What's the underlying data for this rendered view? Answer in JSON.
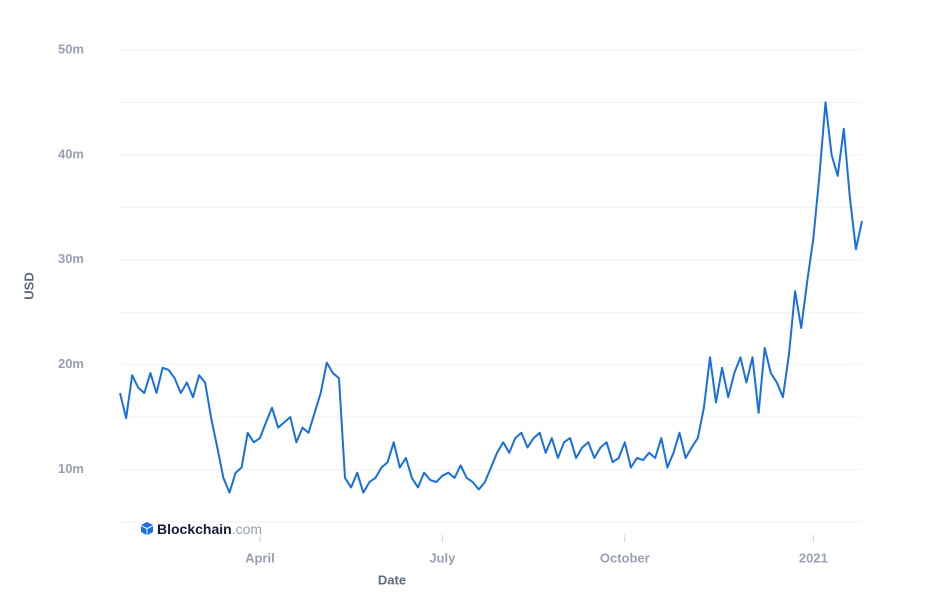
{
  "chart_data": {
    "type": "line",
    "ylabel": "USD",
    "xlabel": "Date",
    "watermark": [
      "Blockchain",
      ".com"
    ],
    "categories": [
      null,
      null,
      null,
      null,
      null,
      null,
      null,
      null,
      null,
      null,
      null,
      null,
      null,
      null,
      null,
      null,
      null,
      null,
      null,
      null,
      null,
      null,
      null,
      "April",
      null,
      null,
      null,
      null,
      null,
      null,
      null,
      null,
      null,
      null,
      null,
      null,
      null,
      null,
      null,
      null,
      null,
      null,
      null,
      null,
      null,
      null,
      null,
      null,
      null,
      null,
      null,
      null,
      null,
      "July",
      null,
      null,
      null,
      null,
      null,
      null,
      null,
      null,
      null,
      null,
      null,
      null,
      null,
      null,
      null,
      null,
      null,
      null,
      null,
      null,
      null,
      null,
      null,
      null,
      null,
      null,
      null,
      null,
      null,
      "October",
      null,
      null,
      null,
      null,
      null,
      null,
      null,
      null,
      null,
      null,
      null,
      null,
      null,
      null,
      null,
      null,
      null,
      null,
      null,
      null,
      null,
      null,
      null,
      null,
      null,
      null,
      null,
      null,
      null,
      null,
      "2021",
      null,
      null,
      null,
      null,
      null,
      null,
      null,
      null
    ],
    "series": [
      {
        "name": "USD",
        "color": "#1a6fe0",
        "values": [
          17.3,
          14.9,
          19,
          17.8,
          17.3,
          19.2,
          17.3,
          19.7,
          19.5,
          18.7,
          17.3,
          18.3,
          16.9,
          19,
          18.3,
          14.9,
          12.1,
          9.2,
          7.8,
          9.7,
          10.2,
          13.5,
          12.6,
          13,
          14.5,
          15.9,
          14,
          14.5,
          15,
          12.6,
          14,
          13.5,
          15.4,
          17.3,
          20.2,
          19.2,
          18.7,
          9.2,
          8.3,
          9.7,
          7.8,
          8.8,
          9.2,
          10.2,
          10.7,
          12.6,
          10.2,
          11.1,
          9.2,
          8.3,
          9.7,
          9,
          8.8,
          9.4,
          9.7,
          9.2,
          10.4,
          9.2,
          8.8,
          8.1,
          8.8,
          10.2,
          11.6,
          12.6,
          11.6,
          13,
          13.5,
          12.1,
          13,
          13.5,
          11.6,
          13,
          11.1,
          12.6,
          13,
          11.1,
          12.1,
          12.6,
          11.1,
          12.1,
          12.6,
          10.7,
          11.1,
          12.6,
          10.2,
          11.1,
          10.9,
          11.6,
          11.1,
          13,
          10.2,
          11.6,
          13.5,
          11.1,
          12.1,
          13,
          15.9,
          20.7,
          16.4,
          19.7,
          16.9,
          19.2,
          20.7,
          18.3,
          20.7,
          15.4,
          21.6,
          19.2,
          18.3,
          16.9,
          21,
          27,
          23.5,
          28,
          32,
          38,
          45,
          40,
          38,
          42.5,
          36,
          31,
          33.7
        ]
      }
    ],
    "ylim": [
      5,
      50
    ],
    "yticks": [
      {
        "value": 10,
        "label": "10m"
      },
      {
        "value": 20,
        "label": "20m"
      },
      {
        "value": 30,
        "label": "30m"
      },
      {
        "value": 40,
        "label": "40m"
      },
      {
        "value": 50,
        "label": "50m"
      }
    ],
    "minor_yticks": [
      5,
      15,
      25,
      35,
      45
    ],
    "grid": true
  }
}
